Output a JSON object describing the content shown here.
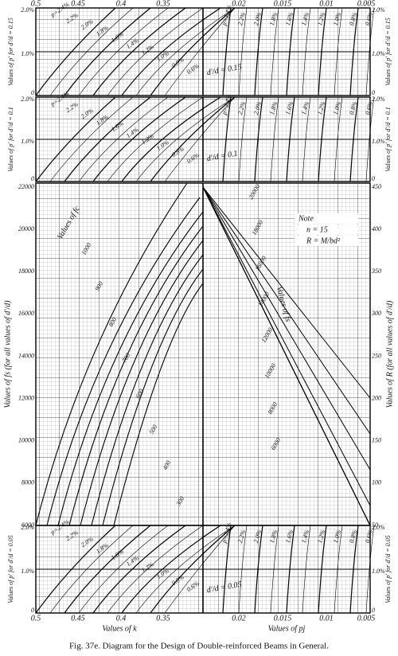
{
  "caption": "Fig. 37e. Diagram for the Design of Double-reinforced Beams in General.",
  "top_axis": {
    "left": [
      "0.5",
      "0.45",
      "0.4",
      "0.35"
    ],
    "right": [
      "0.02",
      "0.015",
      "0.01",
      "0.005"
    ]
  },
  "bottom_axis": {
    "left": [
      "0.5",
      "0.45",
      "0.4",
      "0.35"
    ],
    "right": [
      "0.02",
      "0.015",
      "0.01",
      "0.005"
    ],
    "left_title": "Values of k",
    "right_title": "Values of pj"
  },
  "panels": [
    {
      "ratio_label": "d'/d = 0.15",
      "left_title": "Values of p' for d'/d = 0.15",
      "ticks": [
        "2.0%",
        "1.0%",
        "0"
      ],
      "right_ticks": [
        "2.0%",
        "1.0%",
        "0"
      ],
      "left_curves": [
        "p=2.4%",
        "2.2%",
        "2.0%",
        "1.8%",
        "1.6%",
        "1.4%",
        "1.2%",
        "1.0%",
        "0.8%",
        "0.6%"
      ],
      "right_curves": [
        "p=2.4%",
        "2.2%",
        "2.0%",
        "1.8%",
        "1.6%",
        "1.4%",
        "1.2%",
        "1.0%",
        "0.8%",
        "0.6%"
      ]
    },
    {
      "ratio_label": "d'/d = 0.1",
      "left_title": "Values of p' for d'/d = 0.1",
      "ticks": [
        "2.0%",
        "1.0%",
        "0"
      ],
      "right_ticks": [
        "2.0%",
        "1.0%",
        "0"
      ],
      "left_curves": [
        "p=2.4%",
        "2.2%",
        "2.0%",
        "1.8%",
        "1.6%",
        "1.4%",
        "1.2%",
        "1.0%",
        "0.8%",
        "0.6%"
      ],
      "right_curves": [
        "p=2.4%",
        "2.2%",
        "2.0%",
        "1.8%",
        "1.6%",
        "1.4%",
        "1.2%",
        "1.0%",
        "0.8%",
        "0.6%"
      ]
    },
    {
      "ratio_label": "d'/d = 0.05",
      "left_title": "Values of p' for d'/d = 0.05",
      "ticks": [
        "2.0%",
        "1.0%",
        "0"
      ],
      "right_ticks": [
        "2.0%",
        "1.0%",
        "0"
      ],
      "left_curves": [
        "p=2.4%",
        "2.2%",
        "2.0%",
        "1.8%",
        "1.6%",
        "1.4%",
        "1.2%",
        "1.0%",
        "0.8%",
        "0.6%"
      ],
      "right_curves": [
        "p=2.4%",
        "2.2%",
        "2.0%",
        "1.8%",
        "1.6%",
        "1.4%",
        "1.2%",
        "1.0%",
        "0.8%",
        "0.6%"
      ]
    }
  ],
  "middle": {
    "left_title": "Values of fs (for all values of d'/d)",
    "right_title": "Values of R (for all values of d'/d)",
    "left_ticks": [
      "22000",
      "20000",
      "18000",
      "16000",
      "14000",
      "12000",
      "10000",
      "8000",
      "6000"
    ],
    "right_ticks": [
      "450",
      "400",
      "350",
      "300",
      "250",
      "200",
      "150",
      "100",
      "50"
    ],
    "fc_title": "Values of fc",
    "fc_curves": [
      "1000",
      "900",
      "800",
      "700",
      "600",
      "500",
      "400",
      "300"
    ],
    "fs_title": "Values of fs",
    "fs_curves": [
      "20000",
      "18000",
      "16000",
      "14000",
      "12000",
      "10000",
      "8000",
      "6000"
    ],
    "note": [
      "Note",
      "n = 15",
      "R = M/bd²"
    ]
  }
}
